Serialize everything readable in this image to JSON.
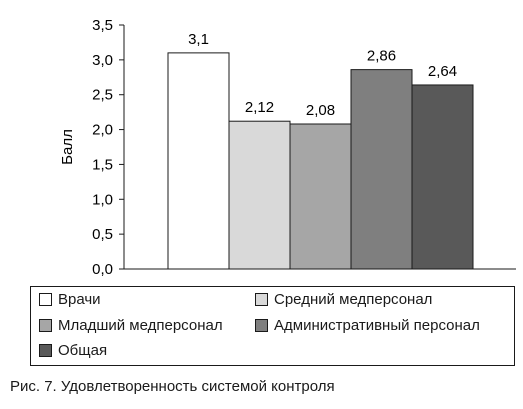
{
  "chart_data": {
    "type": "bar",
    "ylabel": "Балл",
    "ylim": [
      0,
      3.5
    ],
    "yticks": [
      "0,0",
      "0,5",
      "1,0",
      "1,5",
      "2,0",
      "2,5",
      "3,0",
      "3,5"
    ],
    "ytick_values": [
      0,
      0.5,
      1.0,
      1.5,
      2.0,
      2.5,
      3.0,
      3.5
    ],
    "grid": false,
    "legend_position": "bottom",
    "series": [
      {
        "name": "Врачи",
        "value": 3.1,
        "label": "3,1",
        "color": "#ffffff"
      },
      {
        "name": "Средний медперсонал",
        "value": 2.12,
        "label": "2,12",
        "color": "#d9d9d9"
      },
      {
        "name": "Младший медперсонал",
        "value": 2.08,
        "label": "2,08",
        "color": "#a6a6a6"
      },
      {
        "name": "Административный персонал",
        "value": 2.86,
        "label": "2,86",
        "color": "#7f7f7f"
      },
      {
        "name": "Общая",
        "value": 2.64,
        "label": "2,64",
        "color": "#595959"
      }
    ]
  },
  "caption": "Рис. 7. Удовлетворенность системой контроля"
}
